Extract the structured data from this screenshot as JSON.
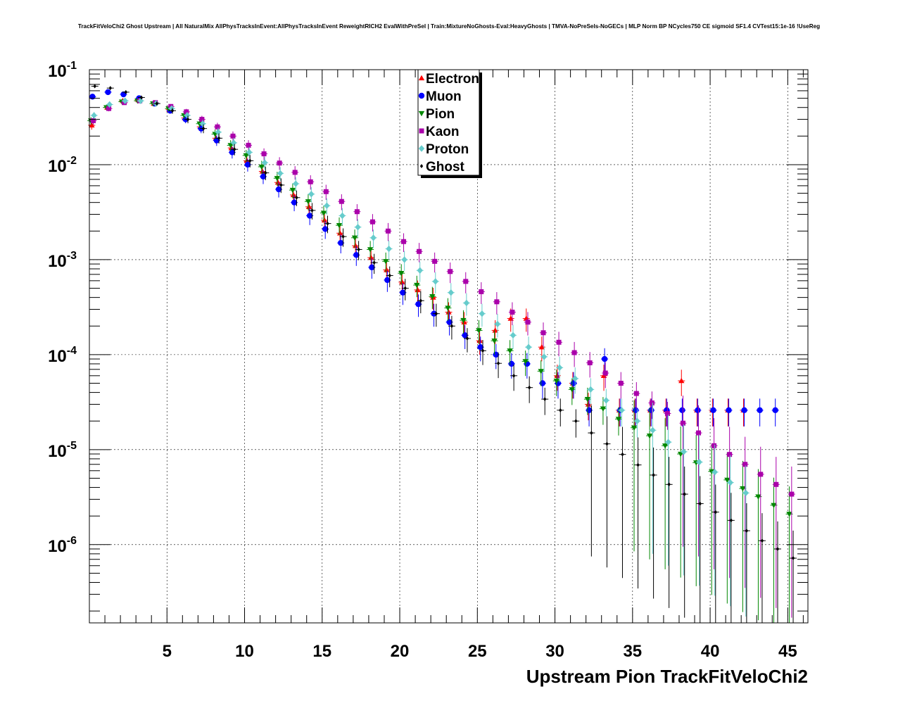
{
  "chart_data": {
    "type": "scatter",
    "title": "TrackFitVeloChi2 Ghost Upstream | All NaturalMix AllPhysTracksInEvent:AllPhysTracksInEvent ReweightRICH2 EvalWithPreSel | Train:MixtureNoGhosts-Eval:HeavyGhosts | TMVA-NoPreSels-NoGECs | MLP Norm BP NCycles750 CE sigmoid SF1.4 CVTest15:1e-16 !UseReg",
    "xlabel": "Upstream Pion TrackFitVeloChi2",
    "ylabel": "",
    "xlim": [
      0,
      46.3
    ],
    "ylim": [
      1.5e-07,
      0.1
    ],
    "yscale": "log",
    "x_ticks": [
      5,
      10,
      15,
      20,
      25,
      30,
      35,
      40,
      45
    ],
    "x_tick_labels": [
      "5",
      "10",
      "15",
      "20",
      "25",
      "30",
      "35",
      "40",
      "45"
    ],
    "y_ticks": [
      0.1,
      0.01,
      0.001,
      0.0001,
      1e-05,
      1e-06
    ],
    "y_tick_labels": [
      {
        "base": "10",
        "exp": "-1"
      },
      {
        "base": "10",
        "exp": "-2"
      },
      {
        "base": "10",
        "exp": "-3"
      },
      {
        "base": "10",
        "exp": "-4"
      },
      {
        "base": "10",
        "exp": "-5"
      },
      {
        "base": "10",
        "exp": "-6"
      }
    ],
    "grid": true,
    "legend_position": "top-center",
    "series": [
      {
        "name": "Electron",
        "color": "#ff0000",
        "marker": "triangle-up",
        "x": [
          0.15,
          1.15,
          2.15,
          3.15,
          4.15,
          5.15,
          6.15,
          7.15,
          8.15,
          9.15,
          10.15,
          11.15,
          12.15,
          13.15,
          14.15,
          15.15,
          16.15,
          17.15,
          18.15,
          19.15,
          20.15,
          21.15,
          22.15,
          23.15,
          24.15,
          25.15,
          26.15,
          27.15,
          28.15,
          29.15,
          30.15,
          31.15,
          32.15,
          33.15,
          34.15,
          35.15,
          36.15,
          37.15,
          38.15,
          39.15,
          40.15,
          41.15,
          42.15
        ],
        "y": [
          0.026,
          0.04,
          0.047,
          0.048,
          0.044,
          0.038,
          0.031,
          0.025,
          0.019,
          0.015,
          0.011,
          0.0085,
          0.0065,
          0.0048,
          0.0036,
          0.0026,
          0.0019,
          0.0014,
          0.00105,
          0.00078,
          0.00058,
          0.00048,
          0.0004,
          0.00028,
          0.00022,
          0.00014,
          0.00018,
          0.00024,
          0.00024,
          0.00012,
          6e-05,
          5e-05,
          3e-05,
          6e-05,
          2.6e-05,
          2.6e-05,
          2.6e-05,
          2.6e-05,
          5.3e-05,
          2.6e-05,
          2.6e-05,
          2.6e-05,
          2.6e-05
        ]
      },
      {
        "name": "Muon",
        "color": "#0000ff",
        "marker": "circle",
        "x": [
          0.2,
          1.2,
          2.2,
          3.2,
          4.2,
          5.2,
          6.2,
          7.2,
          8.2,
          9.2,
          10.2,
          11.2,
          12.2,
          13.2,
          14.2,
          15.2,
          16.2,
          17.2,
          18.2,
          19.2,
          20.2,
          21.2,
          22.2,
          23.2,
          24.2,
          25.2,
          26.2,
          27.2,
          28.2,
          29.2,
          30.2,
          31.2,
          32.2,
          33.2,
          34.2,
          35.2,
          36.2,
          37.2,
          38.2,
          39.2,
          40.2,
          41.2,
          42.2,
          43.2,
          44.2
        ],
        "y": [
          0.052,
          0.058,
          0.055,
          0.05,
          0.044,
          0.037,
          0.03,
          0.024,
          0.018,
          0.0135,
          0.01,
          0.0075,
          0.0055,
          0.004,
          0.0029,
          0.0021,
          0.0015,
          0.00112,
          0.00083,
          0.00061,
          0.00045,
          0.00034,
          0.00027,
          0.00022,
          0.00016,
          0.00012,
          0.0001,
          8e-05,
          8e-05,
          5e-05,
          5e-05,
          5e-05,
          2.6e-05,
          9e-05,
          2.6e-05,
          2.6e-05,
          2.6e-05,
          2.6e-05,
          2.6e-05,
          2.6e-05,
          2.6e-05,
          2.6e-05,
          2.6e-05,
          2.6e-05,
          2.6e-05
        ]
      },
      {
        "name": "Pion",
        "color": "#008800",
        "marker": "triangle-down",
        "x": [
          0.1,
          1.1,
          2.1,
          3.1,
          4.1,
          5.1,
          6.1,
          7.1,
          8.1,
          9.1,
          10.1,
          11.1,
          12.1,
          13.1,
          14.1,
          15.1,
          16.1,
          17.1,
          18.1,
          19.1,
          20.1,
          21.1,
          22.1,
          23.1,
          24.1,
          25.1,
          26.1,
          27.1,
          28.1,
          29.1,
          30.1,
          31.1,
          32.1,
          33.1,
          34.1,
          35.1,
          36.1,
          37.1,
          38.1,
          39.1,
          40.1,
          41.1,
          42.1,
          43.1,
          44.1,
          45.1
        ],
        "y": [
          0.029,
          0.04,
          0.046,
          0.047,
          0.044,
          0.039,
          0.033,
          0.027,
          0.021,
          0.016,
          0.0125,
          0.0095,
          0.0072,
          0.0054,
          0.0041,
          0.0031,
          0.0023,
          0.0017,
          0.00128,
          0.00096,
          0.00072,
          0.00054,
          0.00041,
          0.00031,
          0.00023,
          0.00018,
          0.00014,
          0.00011,
          8.5e-05,
          6.7e-05,
          5.3e-05,
          4.3e-05,
          3.4e-05,
          2.7e-05,
          2.1e-05,
          1.7e-05,
          1.4e-05,
          1.1e-05,
          9e-06,
          7.3e-06,
          5.9e-06,
          4.8e-06,
          3.9e-06,
          3.2e-06,
          2.6e-06,
          2.1e-06
        ]
      },
      {
        "name": "Kaon",
        "color": "#aa00aa",
        "marker": "square",
        "x": [
          0.25,
          1.25,
          2.25,
          3.25,
          4.25,
          5.25,
          6.25,
          7.25,
          8.25,
          9.25,
          10.25,
          11.25,
          12.25,
          13.25,
          14.25,
          15.25,
          16.25,
          17.25,
          18.25,
          19.25,
          20.25,
          21.25,
          22.25,
          23.25,
          24.25,
          25.25,
          26.25,
          27.25,
          28.25,
          29.25,
          30.25,
          31.25,
          32.25,
          33.25,
          34.25,
          35.25,
          36.25,
          37.25,
          38.25,
          39.25,
          40.25,
          41.25,
          42.25,
          43.25,
          44.25,
          45.25
        ],
        "y": [
          0.029,
          0.039,
          0.045,
          0.047,
          0.045,
          0.041,
          0.036,
          0.03,
          0.025,
          0.02,
          0.016,
          0.013,
          0.0104,
          0.0083,
          0.0066,
          0.0052,
          0.0041,
          0.0032,
          0.0025,
          0.002,
          0.00155,
          0.00122,
          0.00096,
          0.00075,
          0.00059,
          0.00046,
          0.00036,
          0.00028,
          0.00022,
          0.00017,
          0.000135,
          0.000105,
          8.2e-05,
          6.4e-05,
          5e-05,
          3.9e-05,
          3.1e-05,
          2.4e-05,
          1.9e-05,
          1.5e-05,
          1.1e-05,
          8.9e-06,
          7e-06,
          5.5e-06,
          4.3e-06,
          3.4e-06
        ]
      },
      {
        "name": "Proton",
        "color": "#66cccc",
        "marker": "diamond",
        "x": [
          0.3,
          1.3,
          2.3,
          3.3,
          4.3,
          5.3,
          6.3,
          7.3,
          8.3,
          9.3,
          10.3,
          11.3,
          12.3,
          13.3,
          14.3,
          15.3,
          16.3,
          17.3,
          18.3,
          19.3,
          20.3,
          21.3,
          22.3,
          23.3,
          24.3,
          25.3,
          26.3,
          27.3,
          28.3,
          29.3,
          30.3,
          31.3,
          32.3,
          33.3,
          34.3,
          35.3,
          36.3,
          37.3,
          38.3,
          39.3,
          40.3,
          41.3,
          42.3
        ],
        "y": [
          0.033,
          0.043,
          0.047,
          0.047,
          0.044,
          0.039,
          0.033,
          0.027,
          0.022,
          0.017,
          0.0135,
          0.0105,
          0.0081,
          0.0063,
          0.0049,
          0.0037,
          0.0029,
          0.0022,
          0.0017,
          0.0013,
          0.001,
          0.00077,
          0.00059,
          0.00045,
          0.00035,
          0.00027,
          0.00021,
          0.00016,
          0.00012,
          9.5e-05,
          7.3e-05,
          5.6e-05,
          4.3e-05,
          3.3e-05,
          2.6e-05,
          2e-05,
          1.6e-05,
          1.2e-05,
          9.5e-06,
          7.4e-06,
          5.8e-06,
          4.5e-06,
          3.5e-06
        ]
      },
      {
        "name": "Ghost",
        "color": "#000000",
        "marker": "cross",
        "x": [
          0.35,
          1.35,
          2.35,
          3.35,
          4.35,
          5.35,
          6.35,
          7.35,
          8.35,
          9.35,
          10.35,
          11.35,
          12.35,
          13.35,
          14.35,
          15.35,
          16.35,
          17.35,
          18.35,
          19.35,
          20.35,
          21.35,
          22.35,
          23.35,
          24.35,
          25.35,
          26.35,
          27.35,
          28.35,
          29.35,
          30.35,
          31.35,
          32.35,
          33.35,
          34.35,
          35.35,
          36.35,
          37.35,
          38.35,
          39.35,
          40.35,
          41.35,
          42.35,
          43.35,
          44.35,
          45.35
        ],
        "y": [
          0.067,
          0.064,
          0.058,
          0.051,
          0.044,
          0.037,
          0.03,
          0.024,
          0.019,
          0.0145,
          0.011,
          0.0082,
          0.0061,
          0.0045,
          0.0033,
          0.0024,
          0.00175,
          0.00128,
          0.00093,
          0.00068,
          0.0005,
          0.00037,
          0.00027,
          0.0002,
          0.000148,
          0.00011,
          8.1e-05,
          6e-05,
          4.5e-05,
          3.4e-05,
          2.6e-05,
          2e-05,
          1.5e-05,
          1.15e-05,
          8.9e-06,
          6.9e-06,
          5.4e-06,
          4.3e-06,
          3.4e-06,
          2.7e-06,
          2.2e-06,
          1.8e-06,
          1.4e-06,
          1.1e-06,
          9e-07,
          7.2e-07
        ]
      }
    ]
  }
}
